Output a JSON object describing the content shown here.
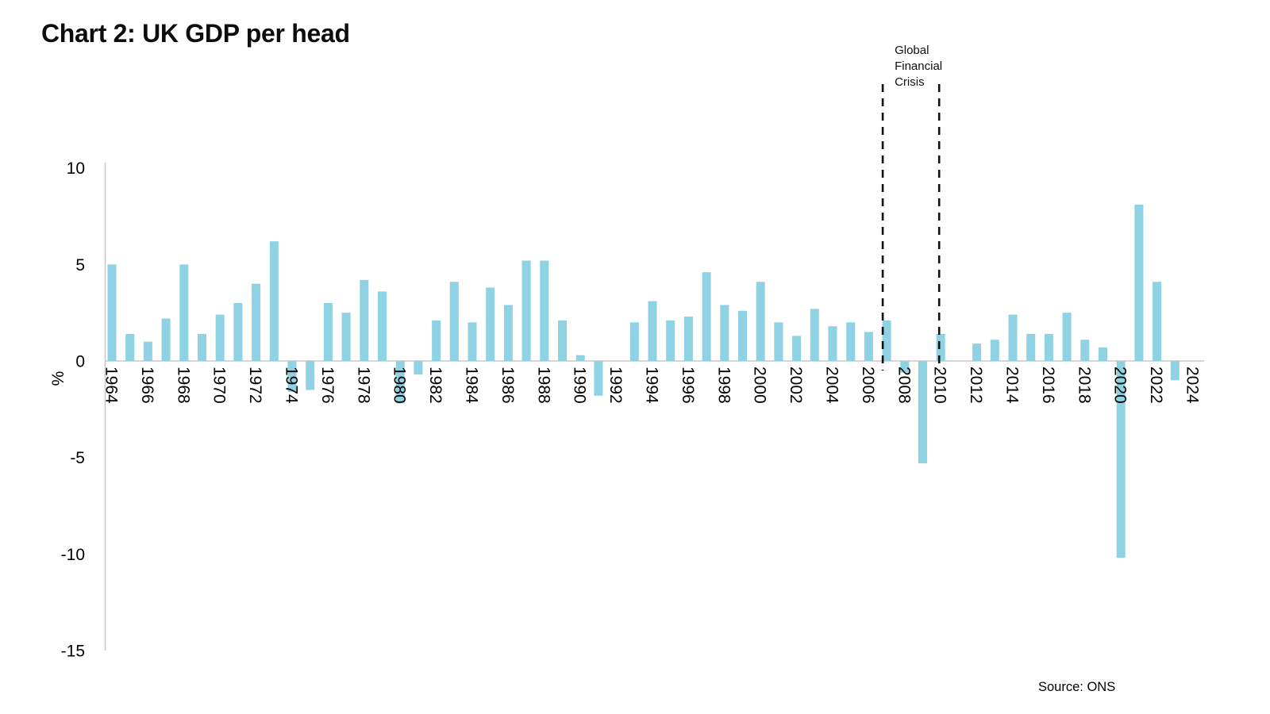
{
  "title": "Chart 2: UK GDP per head",
  "source_label": "Source: ONS",
  "y_axis": {
    "label": "%",
    "ticks": [
      10,
      5,
      0,
      -5,
      -10,
      -15
    ],
    "min": -15,
    "max": 10
  },
  "x_axis": {
    "tick_years": [
      1964,
      1966,
      1968,
      1970,
      1972,
      1974,
      1976,
      1978,
      1980,
      1982,
      1984,
      1986,
      1988,
      1990,
      1992,
      1994,
      1996,
      1998,
      2000,
      2002,
      2004,
      2006,
      2008,
      2010,
      2012,
      2014,
      2016,
      2018,
      2020,
      2022,
      2024
    ]
  },
  "annotation": {
    "label_lines": [
      "Global",
      "Financial",
      "Crisis"
    ],
    "span_start_year": 2007,
    "span_end_year": 2010
  },
  "colors": {
    "bar": "#8FD2E3",
    "axis": "#C9C9C9",
    "text": "#000000",
    "dashed_line": "#111111"
  },
  "chart_data": {
    "type": "bar",
    "title": "Chart 2: UK GDP per head",
    "xlabel": "",
    "ylabel": "%",
    "ylim": [
      -15,
      10
    ],
    "grid": false,
    "legend_position": "none",
    "x": [
      1964,
      1965,
      1966,
      1967,
      1968,
      1969,
      1970,
      1971,
      1972,
      1973,
      1974,
      1975,
      1976,
      1977,
      1978,
      1979,
      1980,
      1981,
      1982,
      1983,
      1984,
      1985,
      1986,
      1987,
      1988,
      1989,
      1990,
      1991,
      1992,
      1993,
      1994,
      1995,
      1996,
      1997,
      1998,
      1999,
      2000,
      2001,
      2002,
      2003,
      2004,
      2005,
      2006,
      2007,
      2008,
      2009,
      2010,
      2011,
      2012,
      2013,
      2014,
      2015,
      2016,
      2017,
      2018,
      2019,
      2020,
      2021,
      2022,
      2023,
      2024
    ],
    "values": [
      5.0,
      1.4,
      1.0,
      2.2,
      5.0,
      1.4,
      2.4,
      3.0,
      4.0,
      6.2,
      -1.6,
      -1.5,
      3.0,
      2.5,
      4.2,
      3.6,
      -2.2,
      -0.7,
      2.1,
      4.1,
      2.0,
      3.8,
      2.9,
      5.2,
      5.2,
      2.1,
      0.3,
      -1.8,
      0.0,
      2.0,
      3.1,
      2.1,
      2.3,
      4.6,
      2.9,
      2.6,
      4.1,
      2.0,
      1.3,
      2.7,
      1.8,
      2.0,
      1.5,
      2.1,
      -0.6,
      -5.3,
      1.4,
      0.0,
      0.9,
      1.1,
      2.4,
      1.4,
      1.4,
      2.5,
      1.1,
      0.7,
      -10.2,
      8.1,
      4.1,
      -1.0,
      0.0
    ],
    "annotations": [
      {
        "text": "Global Financial Crisis",
        "x_start": 2007,
        "x_end": 2010,
        "style": "dashed-vertical-lines"
      }
    ],
    "source": "Source: ONS"
  }
}
